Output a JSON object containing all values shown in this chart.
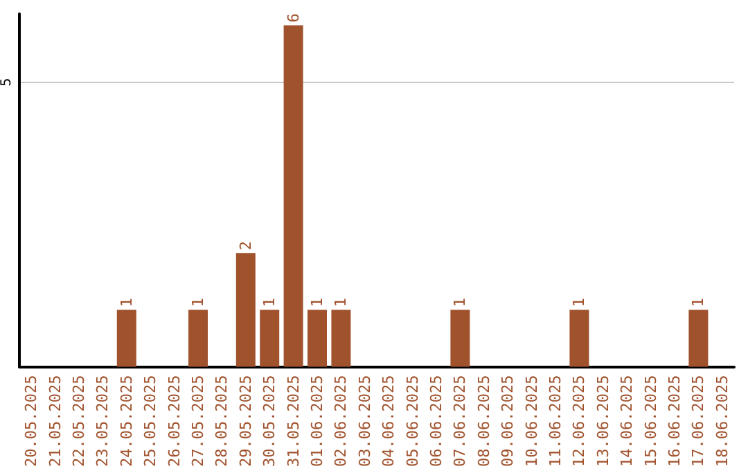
{
  "chart_data": {
    "type": "bar",
    "categories": [
      "20.05.2025",
      "21.05.2025",
      "22.05.2025",
      "23.05.2025",
      "24.05.2025",
      "25.05.2025",
      "26.05.2025",
      "27.05.2025",
      "28.05.2025",
      "29.05.2025",
      "30.05.2025",
      "31.05.2025",
      "01.06.2025",
      "02.06.2025",
      "03.06.2025",
      "04.06.2025",
      "05.06.2025",
      "06.06.2025",
      "07.06.2025",
      "08.06.2025",
      "09.06.2025",
      "10.06.2025",
      "11.06.2025",
      "12.06.2025",
      "13.06.2025",
      "14.06.2025",
      "15.06.2025",
      "16.06.2025",
      "17.06.2025",
      "18.06.2025"
    ],
    "values": [
      0,
      0,
      0,
      0,
      1,
      0,
      0,
      1,
      0,
      2,
      1,
      6,
      1,
      1,
      0,
      0,
      0,
      0,
      1,
      0,
      0,
      0,
      0,
      1,
      0,
      0,
      0,
      0,
      1,
      0
    ],
    "value_labels": [
      null,
      null,
      null,
      null,
      "1",
      null,
      null,
      "1",
      null,
      "2",
      "1",
      "6",
      "1",
      "1",
      null,
      null,
      null,
      null,
      "1",
      null,
      null,
      null,
      null,
      "1",
      null,
      null,
      null,
      null,
      "1",
      null
    ],
    "color": "#a0522d",
    "ylim": [
      0,
      6.2
    ],
    "yticks": [
      5
    ],
    "grid": "y"
  }
}
